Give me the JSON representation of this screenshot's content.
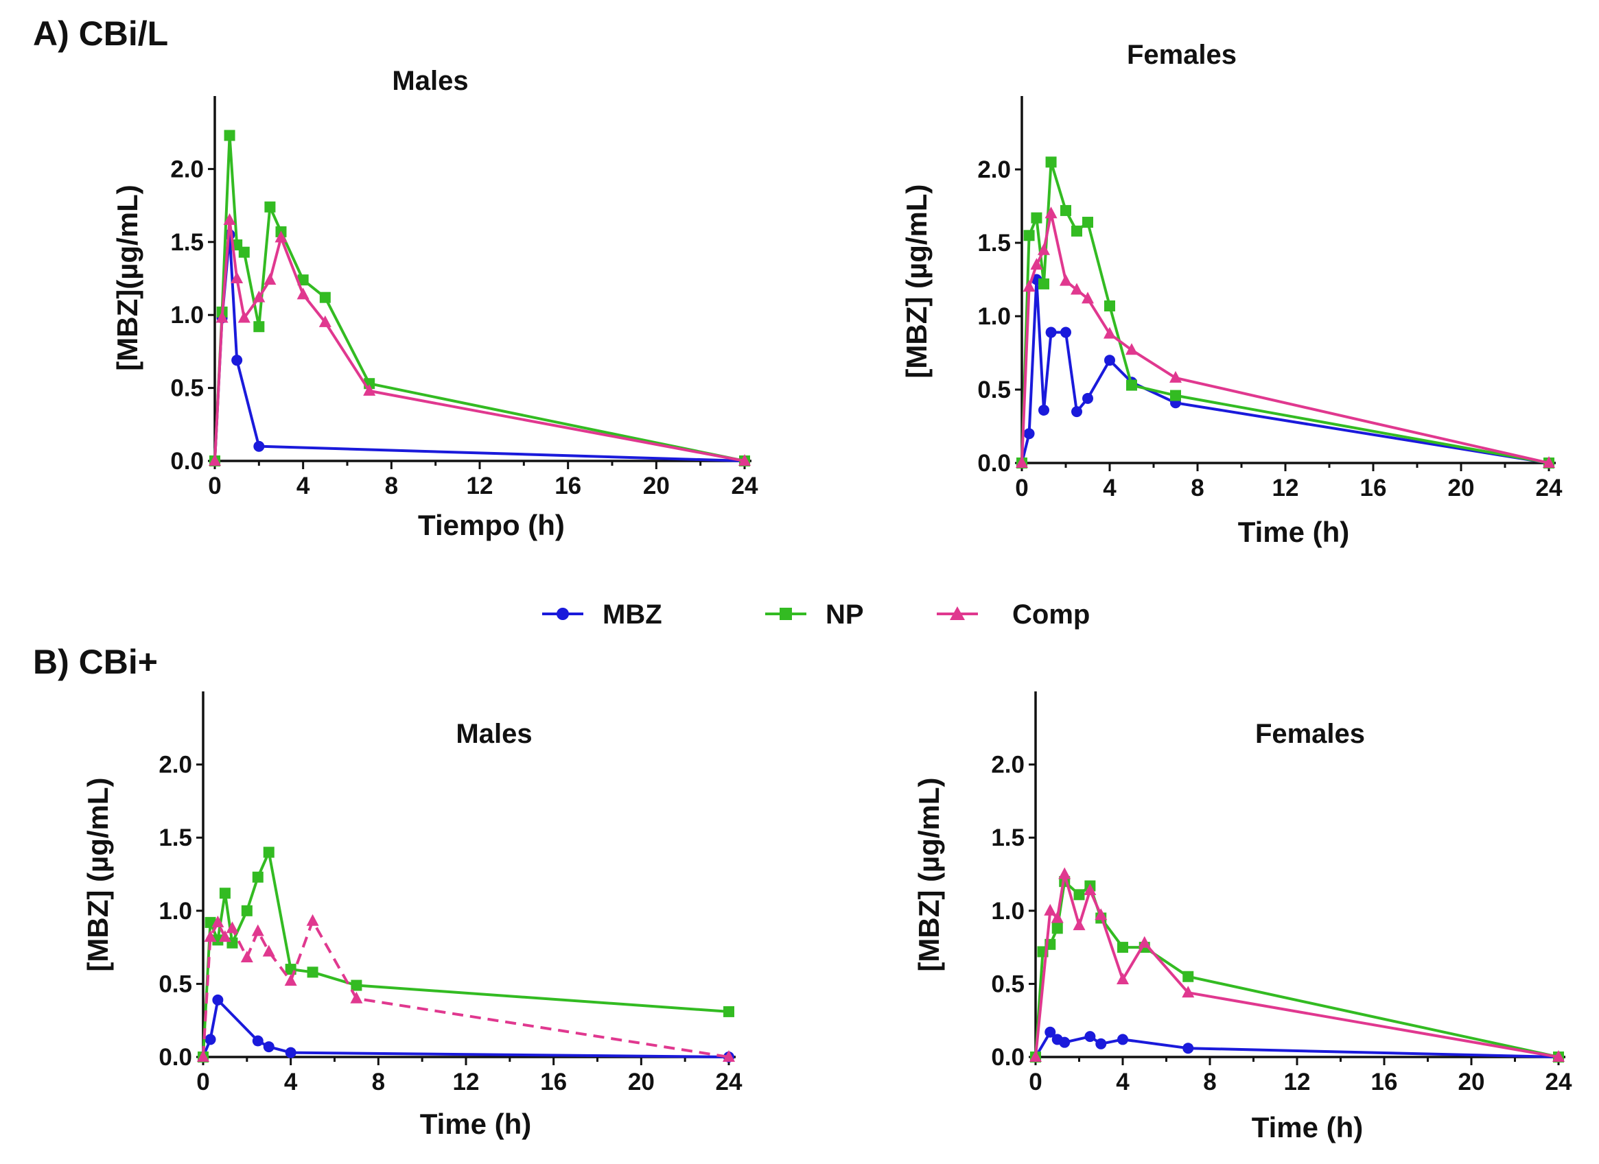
{
  "sections": [
    {
      "label": "A) CBi/L"
    },
    {
      "label": "B) CBi+"
    }
  ],
  "legend": [
    {
      "name": "MBZ",
      "color": "#1a1adb",
      "marker": "circle"
    },
    {
      "name": "NP",
      "color": "#33bb22",
      "marker": "square"
    },
    {
      "name": "Comp",
      "color": "#e0388f",
      "marker": "triangle"
    }
  ],
  "chart_data": [
    {
      "type": "line",
      "title": "Males",
      "xlabel": "Tiempo (h)",
      "ylabel": "[MBZ](µg/mL)",
      "xlim": [
        0,
        24
      ],
      "ylim": [
        0,
        2.5
      ],
      "xticks": [
        "0",
        "4",
        "8",
        "12",
        "16",
        "20",
        "24"
      ],
      "yticks": [
        "0.0",
        "0.5",
        "1.0",
        "1.5",
        "2.0"
      ],
      "series": [
        {
          "name": "MBZ",
          "x": [
            0,
            0.33,
            0.67,
            1,
            2,
            24
          ],
          "y": [
            0,
            0.98,
            1.55,
            0.69,
            0.1,
            0
          ]
        },
        {
          "name": "NP",
          "x": [
            0,
            0.33,
            0.67,
            1,
            1.33,
            2,
            2.5,
            3,
            4,
            5,
            7,
            24
          ],
          "y": [
            0,
            1.02,
            2.23,
            1.48,
            1.43,
            0.92,
            1.74,
            1.57,
            1.24,
            1.12,
            0.53,
            0
          ]
        },
        {
          "name": "Comp",
          "x": [
            0,
            0.33,
            0.67,
            1,
            1.33,
            2,
            2.5,
            3,
            4,
            5,
            7,
            24
          ],
          "y": [
            0,
            0.98,
            1.65,
            1.25,
            0.98,
            1.12,
            1.24,
            1.53,
            1.14,
            0.95,
            0.48,
            0
          ]
        }
      ]
    },
    {
      "type": "line",
      "title": "Females",
      "xlabel": "Time (h)",
      "ylabel": "[MBZ] (µg/mL)",
      "xlim": [
        0,
        24
      ],
      "ylim": [
        0,
        2.5
      ],
      "xticks": [
        "0",
        "4",
        "8",
        "12",
        "16",
        "20",
        "24"
      ],
      "yticks": [
        "0.0",
        "0.5",
        "1.0",
        "1.5",
        "2.0"
      ],
      "series": [
        {
          "name": "MBZ",
          "x": [
            0,
            0.33,
            0.67,
            1,
            1.33,
            2,
            2.5,
            3,
            4,
            5,
            7,
            24
          ],
          "y": [
            0,
            0.2,
            1.25,
            0.36,
            0.89,
            0.89,
            0.35,
            0.44,
            0.7,
            0.55,
            0.41,
            0
          ]
        },
        {
          "name": "NP",
          "x": [
            0,
            0.33,
            0.67,
            1,
            1.33,
            2,
            2.5,
            3,
            4,
            5,
            7,
            24
          ],
          "y": [
            0,
            1.55,
            1.67,
            1.22,
            2.05,
            1.72,
            1.58,
            1.64,
            1.07,
            0.53,
            0.46,
            0
          ]
        },
        {
          "name": "Comp",
          "x": [
            0,
            0.33,
            0.67,
            1,
            1.33,
            2,
            2.5,
            3,
            4,
            5,
            7,
            24
          ],
          "y": [
            0,
            1.2,
            1.35,
            1.45,
            1.7,
            1.24,
            1.18,
            1.12,
            0.88,
            0.77,
            0.58,
            0
          ]
        }
      ]
    },
    {
      "type": "line",
      "title": "Males",
      "xlabel": "Time (h)",
      "ylabel": "[MBZ] (µg/mL)",
      "xlim": [
        0,
        24
      ],
      "ylim": [
        0,
        2.5
      ],
      "xticks": [
        "0",
        "4",
        "8",
        "12",
        "16",
        "20",
        "24"
      ],
      "yticks": [
        "0.0",
        "0.5",
        "1.0",
        "1.5",
        "2.0"
      ],
      "series": [
        {
          "name": "MBZ",
          "x": [
            0,
            0.33,
            0.67,
            2.5,
            3,
            4,
            24
          ],
          "y": [
            0,
            0.12,
            0.39,
            0.11,
            0.07,
            0.03,
            0
          ]
        },
        {
          "name": "NP",
          "x": [
            0,
            0.33,
            0.67,
            1,
            1.33,
            2,
            2.5,
            3,
            4,
            5,
            7,
            24
          ],
          "y": [
            0,
            0.92,
            0.8,
            1.12,
            0.78,
            1.0,
            1.23,
            1.4,
            0.6,
            0.58,
            0.49,
            0.31
          ]
        },
        {
          "name": "Comp",
          "dashed": true,
          "x": [
            0,
            0.33,
            0.67,
            1,
            1.33,
            2,
            2.5,
            3,
            4,
            5,
            7,
            24
          ],
          "y": [
            0,
            0.82,
            0.92,
            0.82,
            0.88,
            0.68,
            0.86,
            0.72,
            0.52,
            0.93,
            0.4,
            0
          ]
        }
      ]
    },
    {
      "type": "line",
      "title": "Females",
      "xlabel": "Time (h)",
      "ylabel": "[MBZ] (µg/mL)",
      "xlim": [
        0,
        24
      ],
      "ylim": [
        0,
        2.5
      ],
      "xticks": [
        "0",
        "4",
        "8",
        "12",
        "16",
        "20",
        "24"
      ],
      "yticks": [
        "0.0",
        "0.5",
        "1.0",
        "1.5",
        "2.0"
      ],
      "series": [
        {
          "name": "MBZ",
          "x": [
            0,
            0.67,
            1,
            1.33,
            2.5,
            3,
            4,
            7,
            24
          ],
          "y": [
            0,
            0.17,
            0.12,
            0.1,
            0.14,
            0.09,
            0.12,
            0.06,
            0
          ]
        },
        {
          "name": "NP",
          "x": [
            0,
            0.33,
            0.67,
            1,
            1.33,
            2,
            2.5,
            3,
            4,
            5,
            7,
            24
          ],
          "y": [
            0,
            0.72,
            0.77,
            0.88,
            1.2,
            1.11,
            1.17,
            0.95,
            0.75,
            0.75,
            0.55,
            0
          ]
        },
        {
          "name": "Comp",
          "x": [
            0,
            0.67,
            1,
            1.33,
            2,
            2.5,
            3,
            4,
            5,
            7,
            24
          ],
          "y": [
            0,
            1.0,
            0.95,
            1.25,
            0.9,
            1.14,
            0.97,
            0.53,
            0.78,
            0.44,
            0
          ]
        }
      ]
    }
  ]
}
